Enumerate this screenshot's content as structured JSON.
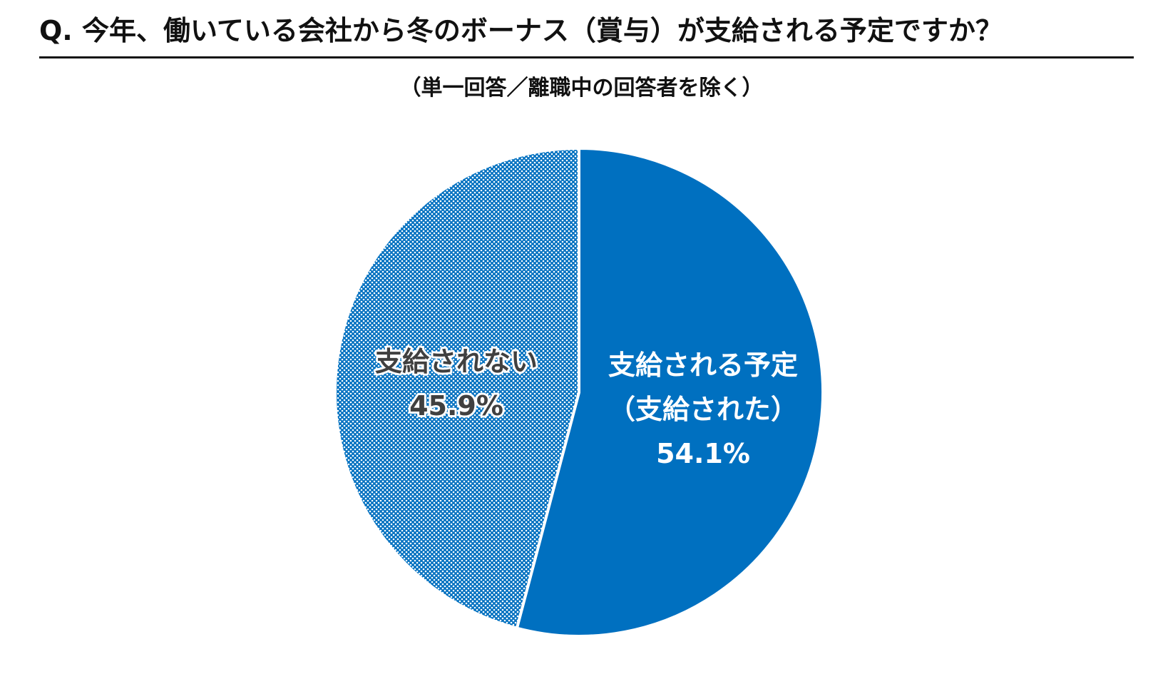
{
  "title": "Q. 今年、働いている会社から冬のボーナス（賞与）が支給される予定ですか？",
  "subtitle": "（単一回答／離職中の回答者を除く）",
  "colors": {
    "accent": "#0070C0",
    "pattern_dot": "#0070C0",
    "label_dark": "#404040",
    "label_light": "#ffffff"
  },
  "chart_data": {
    "type": "pie",
    "title": "Q. 今年、働いている会社から冬のボーナス（賞与）が支給される予定ですか？",
    "subtitle": "（単一回答／離職中の回答者を除く）",
    "start": "12 o'clock",
    "direction": "clockwise",
    "slices": [
      {
        "label_lines": [
          "支給される予定",
          "（支給された）"
        ],
        "value": 54.1,
        "value_label": "54.1%",
        "fill": "solid",
        "color": "#0070C0"
      },
      {
        "label_lines": [
          "支給されない"
        ],
        "value": 45.9,
        "value_label": "45.9%",
        "fill": "dotted-pattern",
        "color": "#0070C0"
      }
    ]
  }
}
